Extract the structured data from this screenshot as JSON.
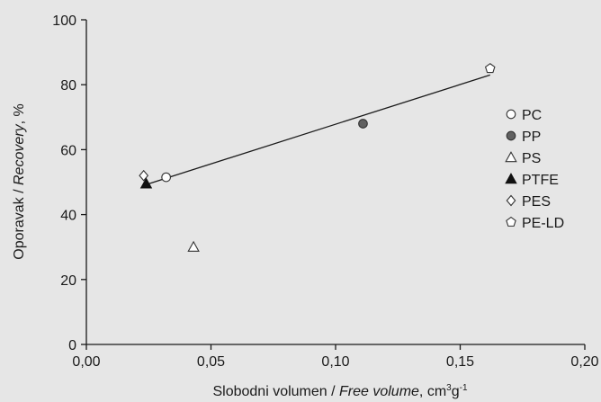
{
  "chart_data": {
    "type": "scatter",
    "xlabel_parts": [
      "Slobodni volumen / ",
      "Free volume",
      ", cm",
      "3",
      "g",
      "-1"
    ],
    "ylabel_parts": [
      "Oporavak / ",
      "Recovery",
      ", %"
    ],
    "xlim": [
      0.0,
      0.2
    ],
    "ylim": [
      0,
      100
    ],
    "x_ticks": [
      0.0,
      0.05,
      0.1,
      0.15,
      0.2
    ],
    "x_tick_labels": [
      "0,00",
      "0,05",
      "0,10",
      "0,15",
      "0,20"
    ],
    "y_ticks": [
      0,
      20,
      40,
      60,
      80,
      100
    ],
    "y_tick_labels": [
      "0",
      "20",
      "40",
      "60",
      "80",
      "100"
    ],
    "grid": false,
    "legend_placement": "right",
    "series": [
      {
        "name": "PC",
        "marker": "circle-open",
        "x": [
          0.032
        ],
        "y": [
          51.5
        ]
      },
      {
        "name": "PP",
        "marker": "circle-filled",
        "x": [
          0.111
        ],
        "y": [
          68
        ]
      },
      {
        "name": "PS",
        "marker": "triangle-open",
        "x": [
          0.043
        ],
        "y": [
          30
        ]
      },
      {
        "name": "PTFE",
        "marker": "triangle-filled",
        "x": [
          0.024
        ],
        "y": [
          49.5
        ]
      },
      {
        "name": "PES",
        "marker": "diamond-open",
        "x": [
          0.023
        ],
        "y": [
          52
        ]
      },
      {
        "name": "PE-LD",
        "marker": "pentagon-open",
        "x": [
          0.162
        ],
        "y": [
          85
        ]
      }
    ],
    "trendline": {
      "x": [
        0.023,
        0.162
      ],
      "y": [
        49.0,
        83.0
      ]
    },
    "colors": {
      "marker_fill": "#606060",
      "marker_edge": "#333333",
      "axis": "#1a1a1a",
      "background": "#e6e6e6"
    }
  }
}
